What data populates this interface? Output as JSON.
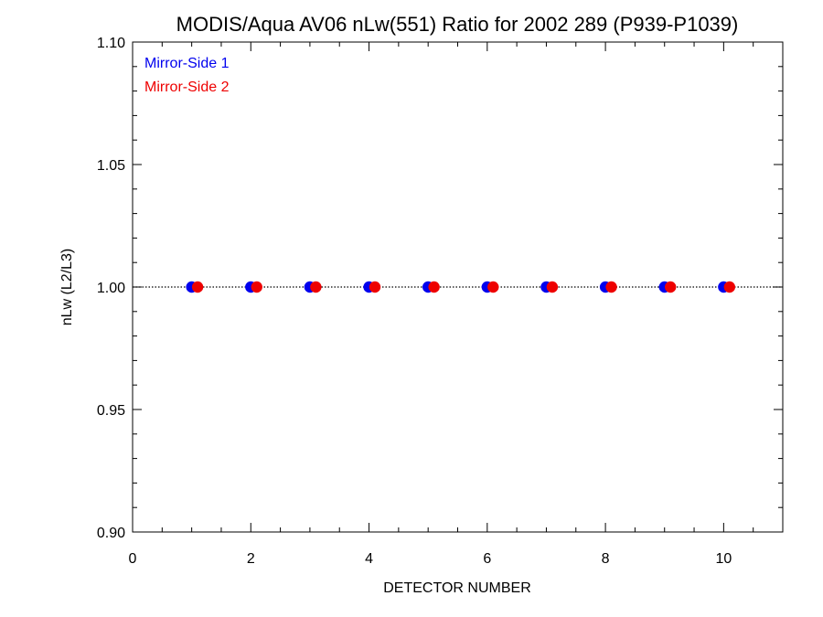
{
  "chart_data": {
    "type": "scatter",
    "title": "MODIS/Aqua AV06 nLw(551) Ratio for 2002 289 (P939-P1039)",
    "xlabel": "DETECTOR NUMBER",
    "ylabel": "nLw (L2/L3)",
    "xlim": [
      0,
      11
    ],
    "ylim": [
      0.9,
      1.1
    ],
    "x_ticks": [
      0,
      2,
      4,
      6,
      8,
      10
    ],
    "x_tick_labels": [
      "0",
      "2",
      "4",
      "6",
      "8",
      "10"
    ],
    "y_ticks": [
      0.9,
      0.95,
      1.0,
      1.05,
      1.1
    ],
    "y_tick_labels": [
      "0.90",
      "0.95",
      "1.00",
      "1.05",
      "1.10"
    ],
    "reference_line": {
      "y": 1.0,
      "style": "dotted",
      "color": "#000000"
    },
    "legend_position": "top-left",
    "series": [
      {
        "name": "Mirror-Side 1",
        "color": "#0000ee",
        "x": [
          1,
          2,
          3,
          4,
          5,
          6,
          7,
          8,
          9,
          10
        ],
        "y": [
          1.0,
          1.0,
          1.0,
          1.0,
          1.0,
          1.0,
          1.0,
          1.0,
          1.0,
          1.0
        ]
      },
      {
        "name": "Mirror-Side 2",
        "color": "#ee0000",
        "x": [
          1.1,
          2.1,
          3.1,
          4.1,
          5.1,
          6.1,
          7.1,
          8.1,
          9.1,
          10.1
        ],
        "y": [
          1.0,
          1.0,
          1.0,
          1.0,
          1.0,
          1.0,
          1.0,
          1.0,
          1.0,
          1.0
        ]
      }
    ]
  }
}
